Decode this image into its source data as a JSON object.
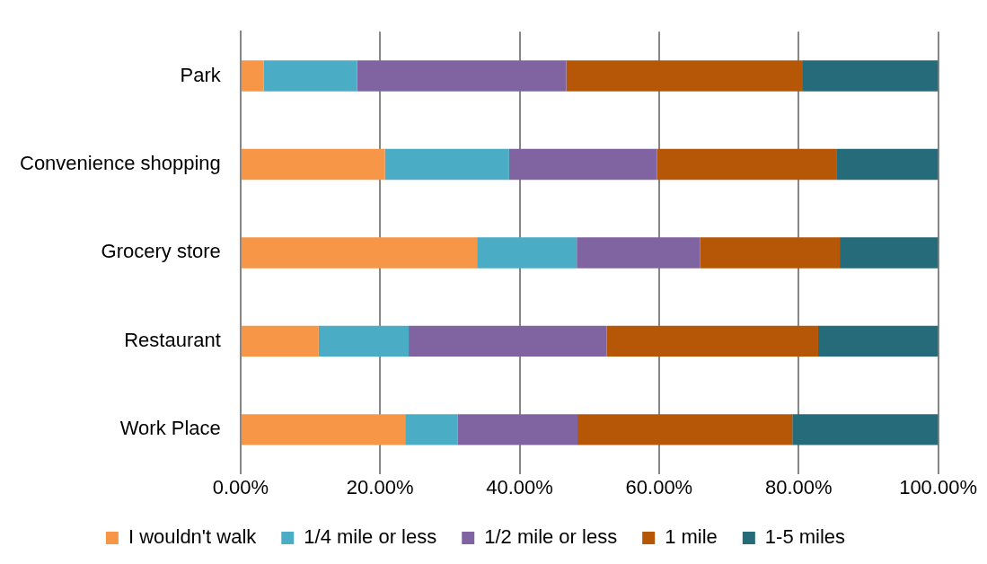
{
  "chart_data": {
    "type": "bar",
    "orientation": "horizontal",
    "stacked": true,
    "categories": [
      "Park",
      "Convenience shopping",
      "Grocery store",
      "Restaurant",
      "Work Place"
    ],
    "series": [
      {
        "name": "I wouldn't walk",
        "color": "#f79646",
        "values": [
          3.3,
          20.7,
          33.9,
          11.2,
          23.6
        ]
      },
      {
        "name": "1/4 mile or less",
        "color": "#4bacc6",
        "values": [
          13.4,
          17.8,
          14.3,
          12.9,
          7.5
        ]
      },
      {
        "name": "1/2 mile or less",
        "color": "#8064a2",
        "values": [
          30.0,
          21.2,
          17.7,
          28.4,
          17.2
        ]
      },
      {
        "name": "1 mile",
        "color": "#b65708",
        "values": [
          33.8,
          25.7,
          20.0,
          30.3,
          30.8
        ]
      },
      {
        "name": "1-5 miles",
        "color": "#256b7a",
        "values": [
          19.5,
          14.6,
          14.1,
          17.2,
          20.9
        ]
      }
    ],
    "xlim": [
      0,
      100
    ],
    "xticks": [
      {
        "value": 0,
        "label": "0.00%"
      },
      {
        "value": 20,
        "label": "20.00%"
      },
      {
        "value": 40,
        "label": "40.00%"
      },
      {
        "value": 60,
        "label": "60.00%"
      },
      {
        "value": 80,
        "label": "80.00%"
      },
      {
        "value": 100,
        "label": "100.00%"
      }
    ],
    "grid": "x",
    "legend": "bottom"
  }
}
